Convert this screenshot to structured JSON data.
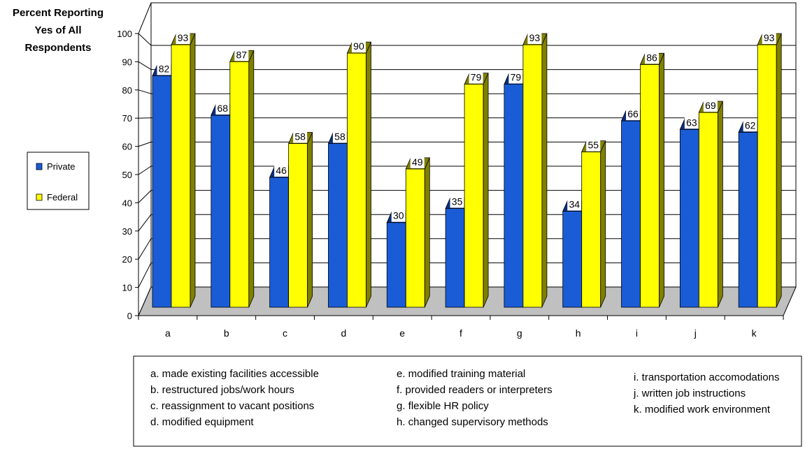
{
  "chart_data": {
    "type": "bar",
    "ylabel": [
      "Percent Reporting",
      "Yes of All",
      "Respondents"
    ],
    "ylim": [
      0,
      100
    ],
    "yticks": [
      "0",
      "10",
      "20",
      "30",
      "40",
      "50",
      "60",
      "70",
      "80",
      "90",
      "100"
    ],
    "categories": [
      "a",
      "b",
      "c",
      "d",
      "e",
      "f",
      "g",
      "h",
      "i",
      "j",
      "k"
    ],
    "series": [
      {
        "name": "Private",
        "color": "#1a5cd6",
        "values": [
          82,
          68,
          46,
          58,
          30,
          35,
          79,
          34,
          66,
          63,
          62
        ]
      },
      {
        "name": "Federal",
        "color": "#ffff00",
        "values": [
          93,
          87,
          58,
          90,
          49,
          79,
          93,
          55,
          86,
          69,
          93
        ]
      }
    ],
    "legend_position": "left",
    "grid": true,
    "floor_color": "#c0c0c0",
    "notes": [
      [
        "a. made existing facilities accessible",
        "b. restructured jobs/work hours",
        "c. reassignment to vacant positions",
        "d. modified equipment"
      ],
      [
        "e. modified training material",
        "f. provided readers or interpreters",
        "g. flexible HR policy",
        "h. changed supervisory methods"
      ],
      [
        "i. transportation accomodations",
        "j. written job instructions",
        "k. modified work environment"
      ]
    ]
  }
}
